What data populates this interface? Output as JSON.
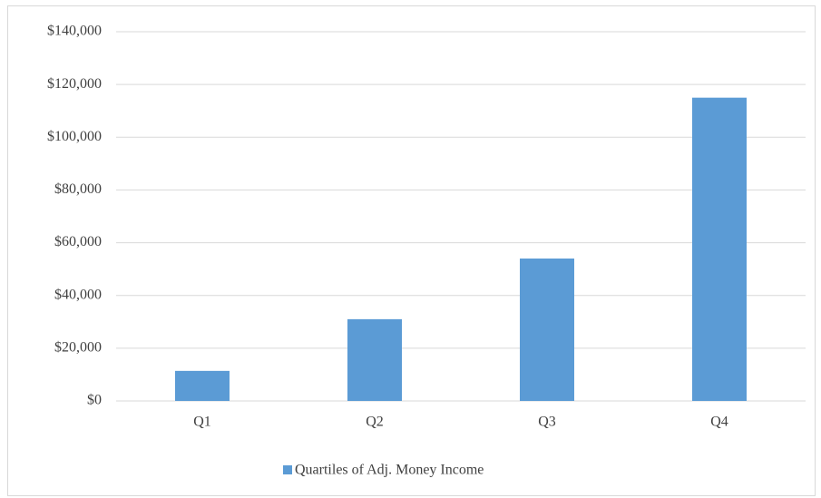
{
  "chart_data": {
    "type": "bar",
    "categories": [
      "Q1",
      "Q2",
      "Q3",
      "Q4"
    ],
    "series": [
      {
        "name": "Quartiles of Adj. Money Income",
        "color": "#5b9bd5",
        "values": [
          11400,
          31000,
          54000,
          115000
        ]
      }
    ],
    "ylim": [
      0,
      140000
    ],
    "yticks": [
      {
        "value": 0,
        "label": "$0"
      },
      {
        "value": 20000,
        "label": "$20,000"
      },
      {
        "value": 40000,
        "label": "$40,000"
      },
      {
        "value": 60000,
        "label": "$60,000"
      },
      {
        "value": 80000,
        "label": "$80,000"
      },
      {
        "value": 100000,
        "label": "$100,000"
      },
      {
        "value": 120000,
        "label": "$120,000"
      },
      {
        "value": 140000,
        "label": "$140,000"
      }
    ],
    "grid": true,
    "legend": "bottom"
  }
}
